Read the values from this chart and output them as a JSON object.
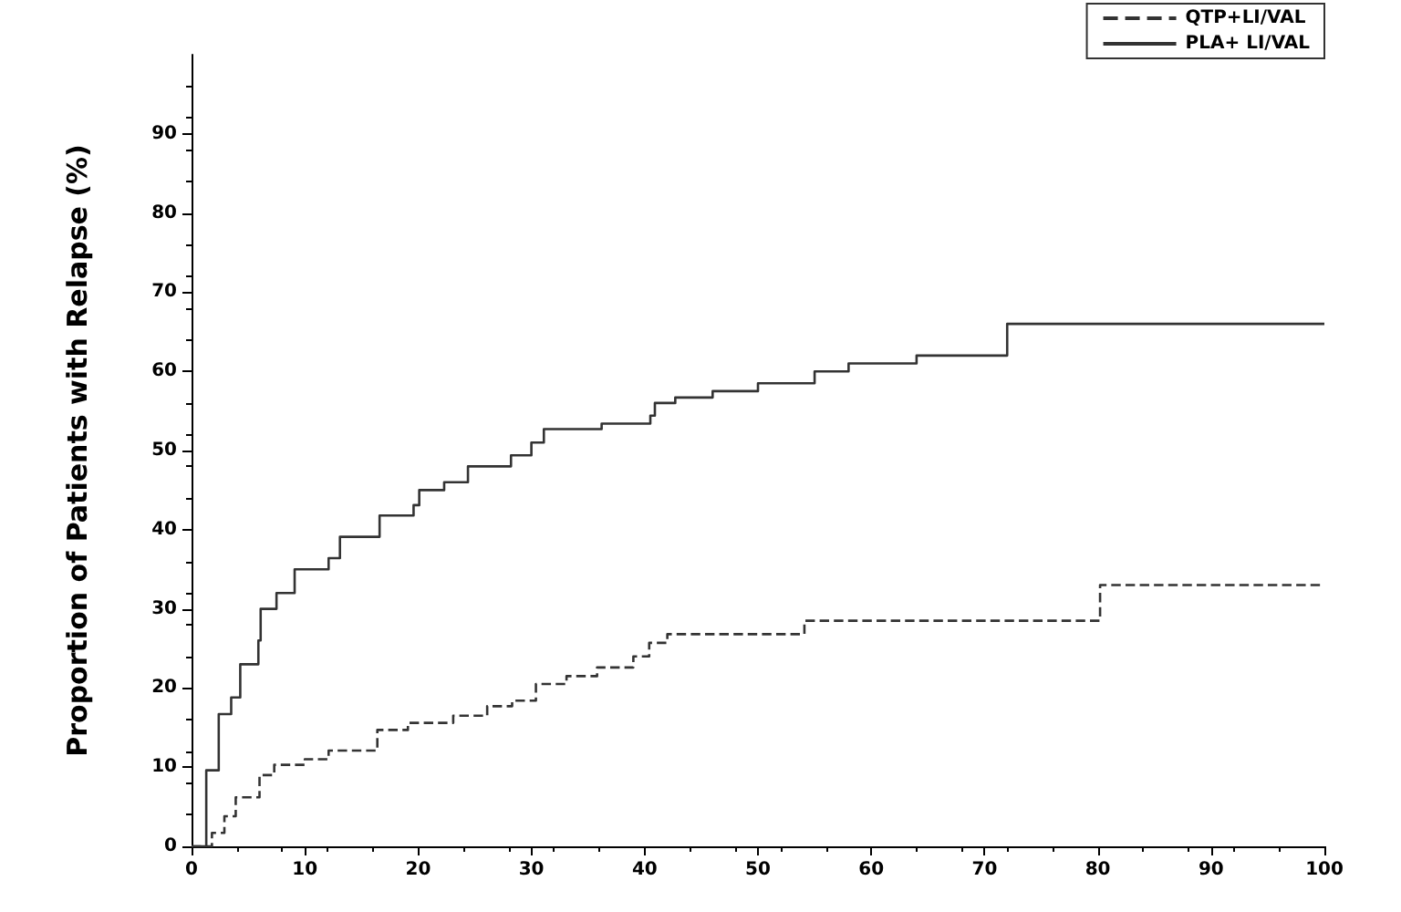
{
  "chart_data": {
    "type": "step",
    "ylabel": "Proportion of Patients with Relapse (%)",
    "xlim": [
      0,
      100
    ],
    "xticks": [
      0,
      10,
      20,
      30,
      40,
      50,
      60,
      70,
      80,
      90,
      100
    ],
    "ylim": [
      0,
      100
    ],
    "yticks": [
      0,
      10,
      20,
      30,
      40,
      50,
      60,
      70,
      80,
      90
    ],
    "grid": false,
    "legend": "top right",
    "marker": "none",
    "series": [
      {
        "name": "QTP+LI/VAL",
        "color": "#333333",
        "line_style": "dashed",
        "x": [
          0,
          1.8,
          2.9,
          3.9,
          6.0,
          7.3,
          10,
          12.1,
          16.4,
          19.1,
          23.1,
          26.1,
          28.3,
          30.4,
          33.1,
          35.8,
          39,
          40.4,
          42,
          54.1,
          80.2,
          100
        ],
        "values": [
          0,
          1.7,
          3.8,
          6.2,
          9,
          10.3,
          11,
          12.1,
          14.7,
          15.6,
          16.5,
          17.7,
          18.4,
          20.5,
          21.5,
          22.6,
          24,
          25.7,
          26.8,
          28.5,
          33,
          33
        ]
      },
      {
        "name": "PLA+ LI/VAL",
        "color": "#333333",
        "line_style": "solid",
        "x": [
          0,
          1.3,
          2.4,
          3.5,
          4.3,
          5.9,
          6.1,
          7.5,
          9.1,
          12.1,
          13.1,
          16.6,
          19.6,
          20.1,
          22.3,
          24.4,
          28.2,
          30,
          31.1,
          36.2,
          40.5,
          40.9,
          42.7,
          46,
          50,
          55,
          58,
          64,
          72,
          100
        ],
        "values": [
          0,
          9.6,
          16.7,
          18.8,
          23,
          26,
          30,
          32,
          35,
          36.4,
          39.1,
          41.8,
          43.1,
          45,
          46,
          48,
          49.4,
          51,
          52.7,
          53.4,
          54.4,
          56,
          56.7,
          57.5,
          58.5,
          60,
          61,
          62,
          66,
          66
        ]
      }
    ]
  }
}
